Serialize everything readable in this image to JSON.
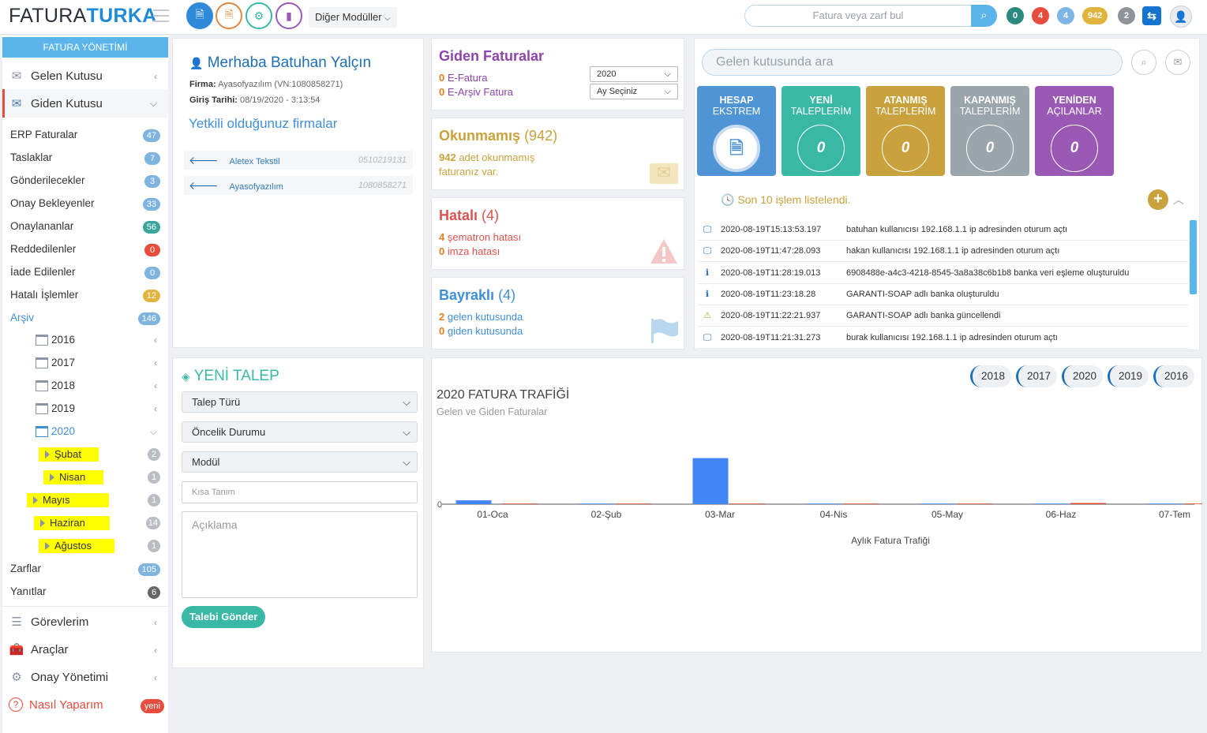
{
  "header": {
    "logo_a": "FATURA",
    "logo_b": "TURKA",
    "modules_label": "Diğer Modüller",
    "search_placeholder": "Fatura veya zarf bul",
    "counters": [
      "0",
      "4",
      "4",
      "942",
      "2"
    ],
    "counter_colors": [
      "#2b8a7f",
      "#e74c3c",
      "#7db5e6",
      "#e0b43d",
      "#8e9499"
    ]
  },
  "sidebar": {
    "section_title": "FATURA YÖNETİMİ",
    "inbox": "Gelen Kutusu",
    "outbox": "Giden Kutusu",
    "items": [
      {
        "label": "ERP Faturalar",
        "count": "47",
        "color": "#7fb3e0"
      },
      {
        "label": "Taslaklar",
        "count": "7",
        "color": "#7fb3e0"
      },
      {
        "label": "Gönderilecekler",
        "count": "3",
        "color": "#7fb3e0"
      },
      {
        "label": "Onay Bekleyenler",
        "count": "33",
        "color": "#7fb3e0"
      },
      {
        "label": "Onaylananlar",
        "count": "56",
        "color": "#3aa69b"
      },
      {
        "label": "Reddedilenler",
        "count": "0",
        "color": "#e74c3c"
      },
      {
        "label": "İade Edilenler",
        "count": "0",
        "color": "#7fb3e0"
      },
      {
        "label": "Hatalı İşlemler",
        "count": "12",
        "color": "#e0b43d"
      },
      {
        "label": "Arşiv",
        "count": "146",
        "color": "#7fb3e0"
      }
    ],
    "years": [
      "2016",
      "2017",
      "2018",
      "2019",
      "2020"
    ],
    "months": [
      {
        "label": "Şubat",
        "count": "2"
      },
      {
        "label": "Nisan",
        "count": "1"
      },
      {
        "label": "Mayıs",
        "count": "1"
      },
      {
        "label": "Haziran",
        "count": "14"
      },
      {
        "label": "Ağustos",
        "count": "1"
      }
    ],
    "zarflar": {
      "label": "Zarflar",
      "count": "105"
    },
    "yanitlar": {
      "label": "Yanıtlar",
      "count": "6"
    },
    "gorevlerim": "Görevlerim",
    "araclar": "Araçlar",
    "onay_yonetimi": "Onay Yönetimi",
    "nasil": "Nasıl Yaparım",
    "nasil_badge": "yeni"
  },
  "welcome": {
    "greeting": "Merhaba Batuhan Yalçın",
    "firma_label": "Firma:",
    "firma_value": "Ayasofyazılım (VN:1080858271)",
    "giris_label": "Giriş Tarihi:",
    "giris_value": "08/19/2020 - 3:13:54",
    "companies_title": "Yetkili olduğunuz firmalar",
    "companies": [
      {
        "name": "Aletex Tekstil",
        "vn": "0510219131"
      },
      {
        "name": "Ayasofyazılım",
        "vn": "1080858271"
      }
    ]
  },
  "outgoing": {
    "title": "Giden Faturalar",
    "efatura_count": "0",
    "efatura_label": "E-Fatura",
    "earsiv_count": "0",
    "earsiv_label": "E-Arşiv Fatura",
    "year_select": "2020",
    "month_select": "Ay Seçiniz"
  },
  "unread": {
    "title": "Okunmamış",
    "count": "(942)",
    "n": "942",
    "text1": "adet okunmamış",
    "text2": "faturanız var."
  },
  "errors": {
    "title": "Hatalı",
    "count": "(4)",
    "n1": "4",
    "t1": "şematron hatası",
    "n2": "0",
    "t2": "imza hatası"
  },
  "flagged": {
    "title": "Bayraklı",
    "count": "(4)",
    "n1": "2",
    "t1": "gelen kutusunda",
    "n2": "0",
    "t2": "giden kutusunda"
  },
  "right": {
    "search_placeholder": "Gelen kutusunda ara",
    "tiles": [
      {
        "l1": "HESAP",
        "l2": "EKSTREM",
        "value": "",
        "color": "#4f94d4"
      },
      {
        "l1": "YENİ",
        "l2": "TALEPLERİM",
        "value": "0",
        "color": "#3ab8a6"
      },
      {
        "l1": "ATANMIŞ",
        "l2": "TALEPLERİM",
        "value": "0",
        "color": "#c9a23d"
      },
      {
        "l1": "KAPANMIŞ",
        "l2": "TALEPLERİM",
        "value": "0",
        "color": "#9aa6ab"
      },
      {
        "l1": "YENİDEN",
        "l2": "AÇILANLAR",
        "value": "0",
        "color": "#9b59b6"
      }
    ],
    "log_title": "Son 10 işlem listelendi.",
    "logs": [
      {
        "icon": "monitor",
        "time": "2020-08-19T15:13:53.197",
        "msg": "batuhan kullanıcısı 192.168.1.1 ip adresinden oturum açtı"
      },
      {
        "icon": "monitor",
        "time": "2020-08-19T11:47:28.093",
        "msg": "hakan kullanıcısı 192.168.1.1 ip adresinden oturum açtı"
      },
      {
        "icon": "info",
        "time": "2020-08-19T11:28:19.013",
        "msg": "6908488e-a4c3-4218-8545-3a8a38c6b1b8 banka veri eşleme oluşturuldu"
      },
      {
        "icon": "info",
        "time": "2020-08-19T11:23:18.28",
        "msg": "GARANTI-SOAP adlı banka oluşturuldu"
      },
      {
        "icon": "warning",
        "time": "2020-08-19T11:22:21.937",
        "msg": "GARANTI-SOAP adlı banka güncellendi"
      },
      {
        "icon": "monitor",
        "time": "2020-08-19T11:21:31.273",
        "msg": "burak kullanıcısı 192.168.1.1 ip adresinden oturum açtı"
      }
    ]
  },
  "new_request": {
    "title": "YENİ TALEP",
    "type": "Talep Türü",
    "priority": "Öncelik Durumu",
    "module": "Modül",
    "short_placeholder": "Kısa Tanım",
    "desc_placeholder": "Açıklama",
    "submit": "Talebi Gönder"
  },
  "year_buttons": [
    "2018",
    "2017",
    "2020",
    "2019",
    "2016"
  ],
  "chart_data": {
    "type": "bar",
    "title": "2020 FATURA TRAFİĞİ",
    "subtitle": "Gelen ve Giden Faturalar",
    "xlabel": "Aylık Fatura Trafiği",
    "ylabel": "",
    "y_tick": "0",
    "categories": [
      "01-Oca",
      "02-Şub",
      "03-Mar",
      "04-Nis",
      "05-May",
      "06-Haz",
      "07-Tem"
    ],
    "ylim": [
      0,
      30
    ],
    "series": [
      {
        "values": [
          2,
          0,
          24,
          0,
          0,
          0,
          0
        ],
        "color": "#4285f4"
      },
      {
        "values": [
          0,
          0,
          0,
          0,
          0.3,
          0.6,
          0
        ],
        "color": "#db4437"
      }
    ]
  }
}
